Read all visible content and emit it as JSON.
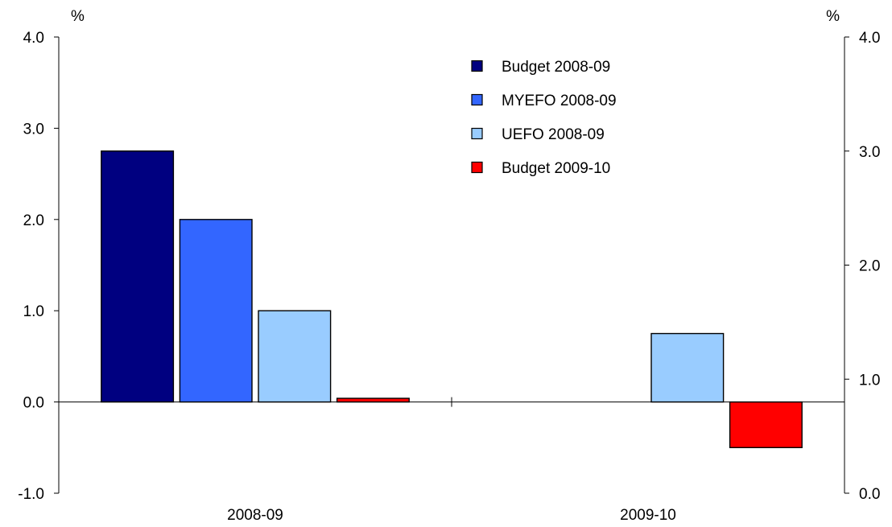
{
  "chart_data": {
    "type": "bar",
    "title": "",
    "xlabel": "",
    "ylabel": "",
    "categories": [
      "2008-09",
      "2009-10"
    ],
    "left_axis": {
      "unit": "%",
      "ylim": [
        -1.0,
        4.0
      ],
      "ticks": [
        "4.0",
        "3.0",
        "2.0",
        "1.0",
        "0.0",
        "-1.0"
      ]
    },
    "right_axis": {
      "unit": "%",
      "ylim": [
        0.0,
        4.0
      ],
      "ticks": [
        "4.0",
        "3.0",
        "2.0",
        "1.0",
        "0.0"
      ]
    },
    "series": [
      {
        "name": "Budget 2008-09",
        "color": "#000080",
        "values": [
          2.75,
          null
        ]
      },
      {
        "name": "MYEFO 2008-09",
        "color": "#3366FF",
        "values": [
          2.0,
          null
        ]
      },
      {
        "name": "UEFO 2008-09",
        "color": "#99CCFF",
        "values": [
          1.0,
          0.75
        ]
      },
      {
        "name": "Budget 2009-10",
        "color": "#FF0000",
        "values": [
          0.04,
          -0.5
        ]
      }
    ],
    "legend_position": "top-right",
    "grid": false
  }
}
